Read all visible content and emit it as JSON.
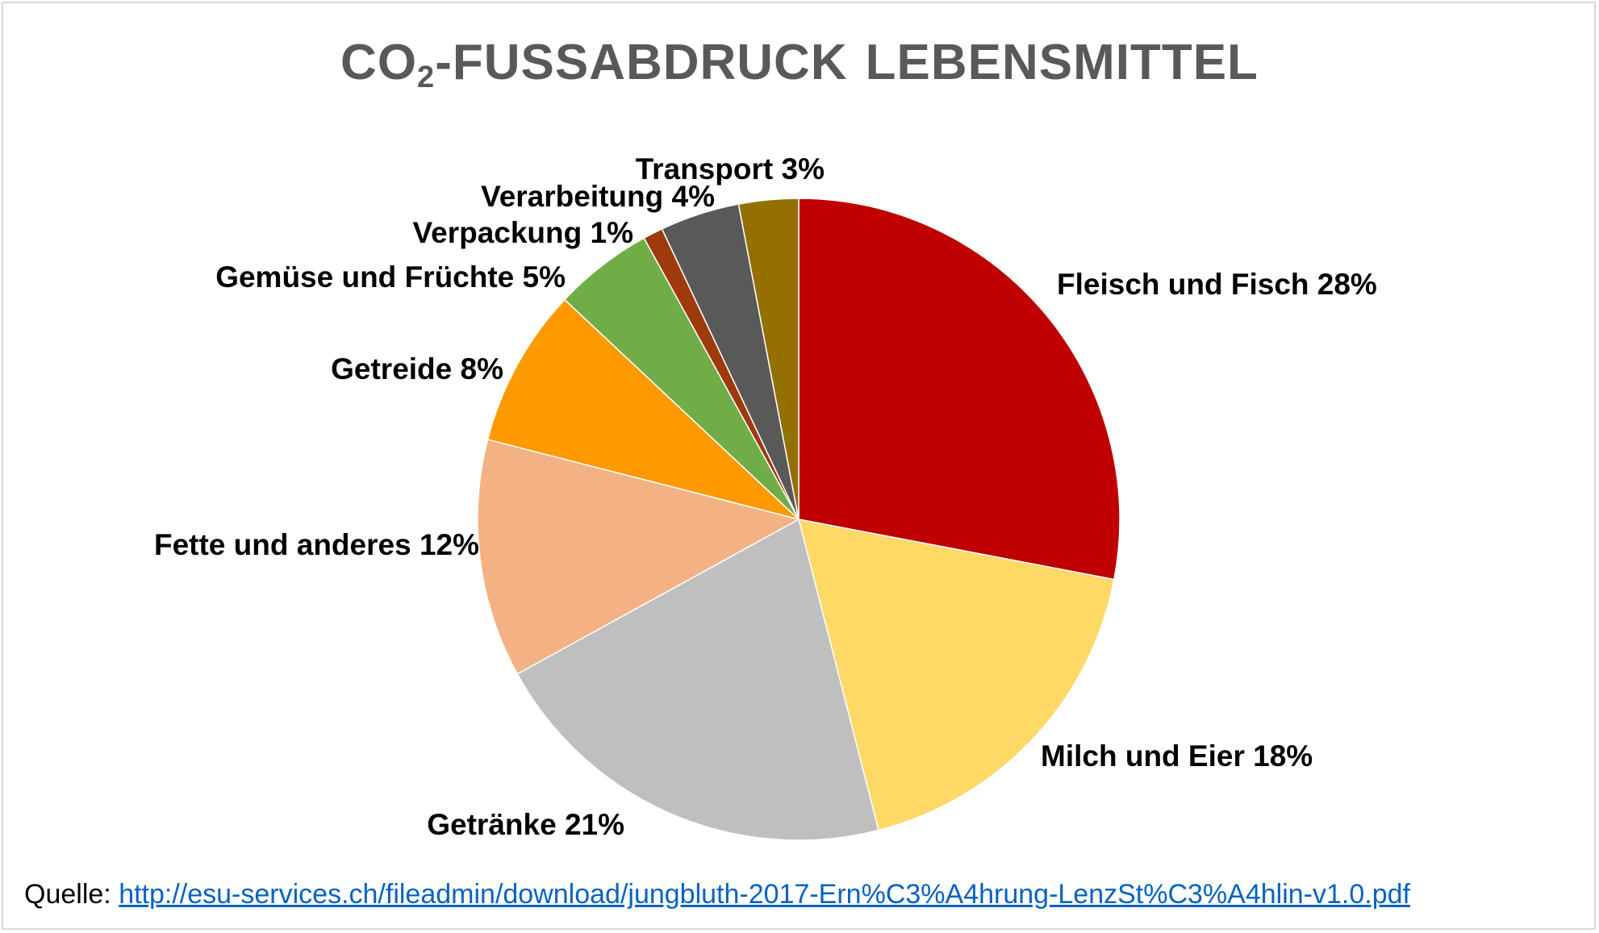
{
  "title": {
    "prefix": "CO",
    "subscript": "2",
    "part1": "-FUSSABDRUCK",
    "part2": "LEBENSMITTEL"
  },
  "chart_data": {
    "type": "pie",
    "start_angle_deg": 0,
    "direction": "clockwise",
    "slices": [
      {
        "label": "Fleisch und Fisch  28%",
        "value": 28,
        "color": "#c00000"
      },
      {
        "label": "Milch und Eier 18%",
        "value": 18,
        "color": "#ffd966"
      },
      {
        "label": "Getränke  21%",
        "value": 21,
        "color": "#bfbfbf"
      },
      {
        "label": "Fette und anderes 12%",
        "value": 12,
        "color": "#f4b183"
      },
      {
        "label": "Getreide 8%",
        "value": 8,
        "color": "#ff9900"
      },
      {
        "label": "Gemüse und Früchte 5%",
        "value": 5,
        "color": "#70ad47"
      },
      {
        "label": "Verpackung 1%",
        "value": 1,
        "color": "#9e3a0c"
      },
      {
        "label": "Verarbeitung 4%",
        "value": 4,
        "color": "#595959"
      },
      {
        "label": "Transport  3%",
        "value": 3,
        "color": "#937000"
      }
    ]
  },
  "source": {
    "label": "Quelle:",
    "url": "http://esu-services.ch/fileadmin/download/jungbluth-2017-Ern%C3%A4hrung-LenzSt%C3%A4hlin-v1.0.pdf"
  }
}
